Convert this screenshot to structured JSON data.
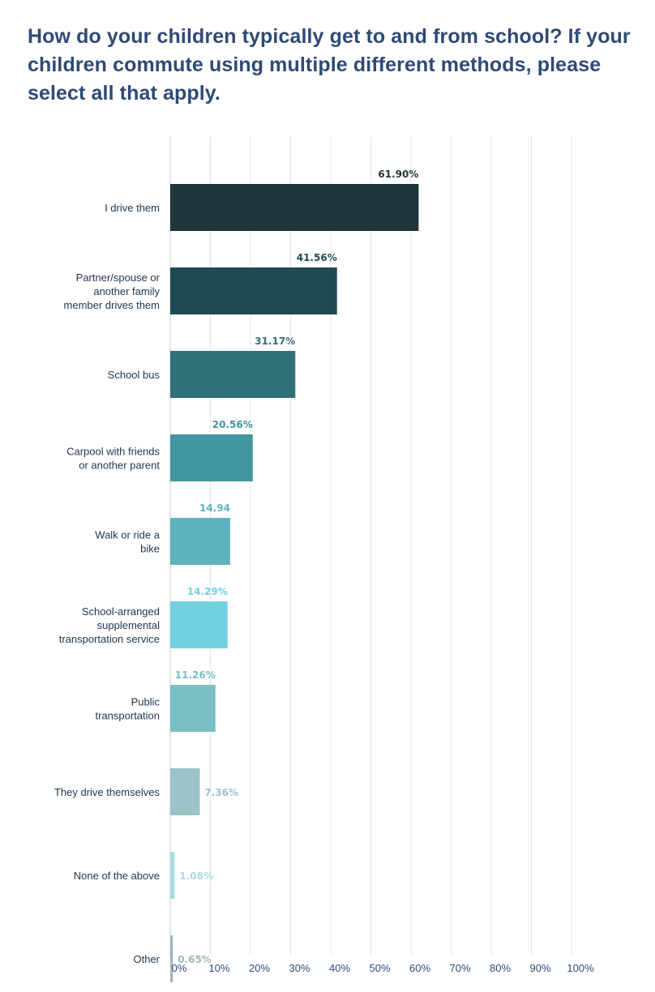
{
  "chart_data": {
    "type": "bar",
    "orientation": "horizontal",
    "title": "How do your children typically get to and from school? If your children commute using multiple different methods, please select all that apply.",
    "categories": [
      [
        "I drive them"
      ],
      [
        "Partner/spouse or",
        "another family",
        "member drives them"
      ],
      [
        "School bus"
      ],
      [
        "Carpool with friends",
        "or another parent"
      ],
      [
        "Walk or ride a",
        "bike"
      ],
      [
        "School-arranged",
        "supplemental",
        "transportation service"
      ],
      [
        "Public",
        "transportation"
      ],
      [
        "They drive themselves"
      ],
      [
        "None of the above"
      ],
      [
        "Other"
      ]
    ],
    "values": [
      61.9,
      41.56,
      31.17,
      20.56,
      14.94,
      14.29,
      11.26,
      7.36,
      1.08,
      0.65
    ],
    "value_labels": [
      "61.90%",
      "41.56%",
      "31.17%",
      "20.56%",
      "14.94",
      "14.29%",
      "11.26%",
      "7.36%",
      "1.08%",
      "0.65%"
    ],
    "bar_colors": [
      "#1f3539",
      "#1f4a55",
      "#316f79",
      "#42969f",
      "#5fb2bd",
      "#72d1e0",
      "#7bbfc6",
      "#9cc3c8",
      "#a6dde6",
      "#a2b6b9"
    ],
    "label_colors": [
      "#1f3539",
      "#1f4a55",
      "#316f79",
      "#42969f",
      "#5fb2bd",
      "#72d1e0",
      "#7bbfc6",
      "#9cc3c8",
      "#a6dde6",
      "#a2b6b9"
    ],
    "x_ticks": [
      "0%",
      "10%",
      "20%",
      "30%",
      "40%",
      "50%",
      "60%",
      "70%",
      "80%",
      "90%",
      "100%"
    ],
    "xlim": [
      0,
      100
    ],
    "grid": true,
    "legend": "none"
  }
}
